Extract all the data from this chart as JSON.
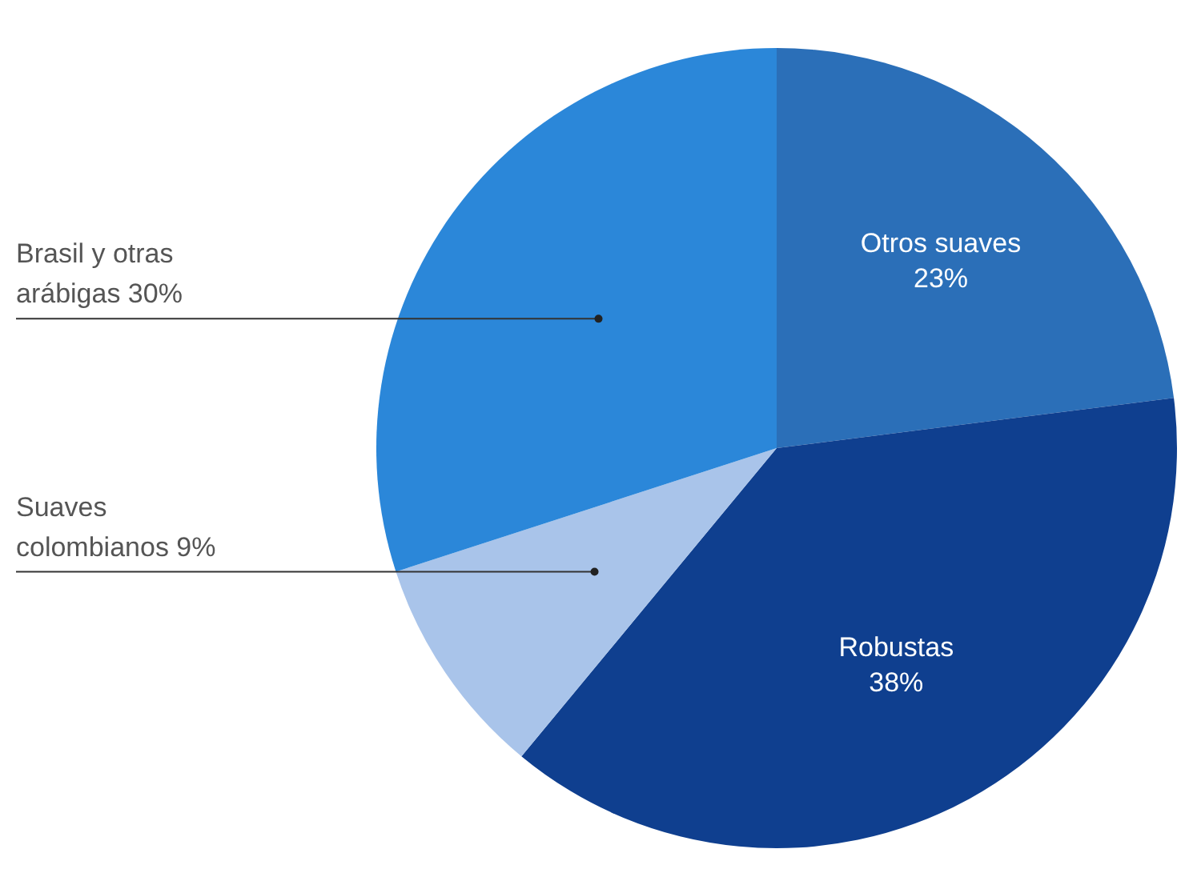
{
  "chart_data": {
    "type": "pie",
    "categories": [
      "Otros suaves",
      "Robustas",
      "Suaves colombianos",
      "Brasil y otras arábigas"
    ],
    "values": [
      23,
      38,
      9,
      30
    ],
    "value_labels": [
      "23%",
      "38%",
      "9%",
      "30%"
    ],
    "colors": [
      "#2b6fb8",
      "#0f3f8f",
      "#a9c4ea",
      "#2b87d9"
    ]
  }
}
